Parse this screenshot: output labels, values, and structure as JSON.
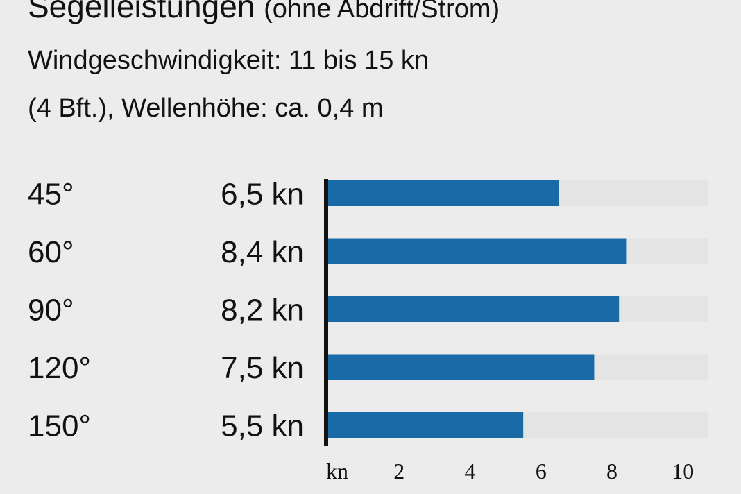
{
  "header": {
    "title": "Segelleistungen",
    "title_note": "(ohne Abdrift/Strom)",
    "subtitle_line1": "Windgeschwindigkeit: 11 bis 15 kn",
    "subtitle_line2": "(4 Bft.), Wellenhöhe: ca. 0,4 m"
  },
  "chart_data": {
    "type": "bar",
    "orientation": "horizontal",
    "title": "Segelleistungen",
    "categories": [
      "45°",
      "60°",
      "90°",
      "120°",
      "150°"
    ],
    "values": [
      6.5,
      8.4,
      8.2,
      7.5,
      5.5
    ],
    "value_labels": [
      "6,5 kn",
      "8,4 kn",
      "8,2 kn",
      "7,5 kn",
      "5,5 kn"
    ],
    "xlim": [
      0,
      10.7
    ],
    "x_ticks": [
      2,
      4,
      6,
      8,
      10
    ],
    "x_tick_labels": [
      "2",
      "4",
      "6",
      "8",
      "10"
    ],
    "x_unit_label": "kn",
    "grid": false,
    "bar_color": "#1a6aa7",
    "track_color": "#e4e4e4",
    "axis_color": "#111111"
  }
}
